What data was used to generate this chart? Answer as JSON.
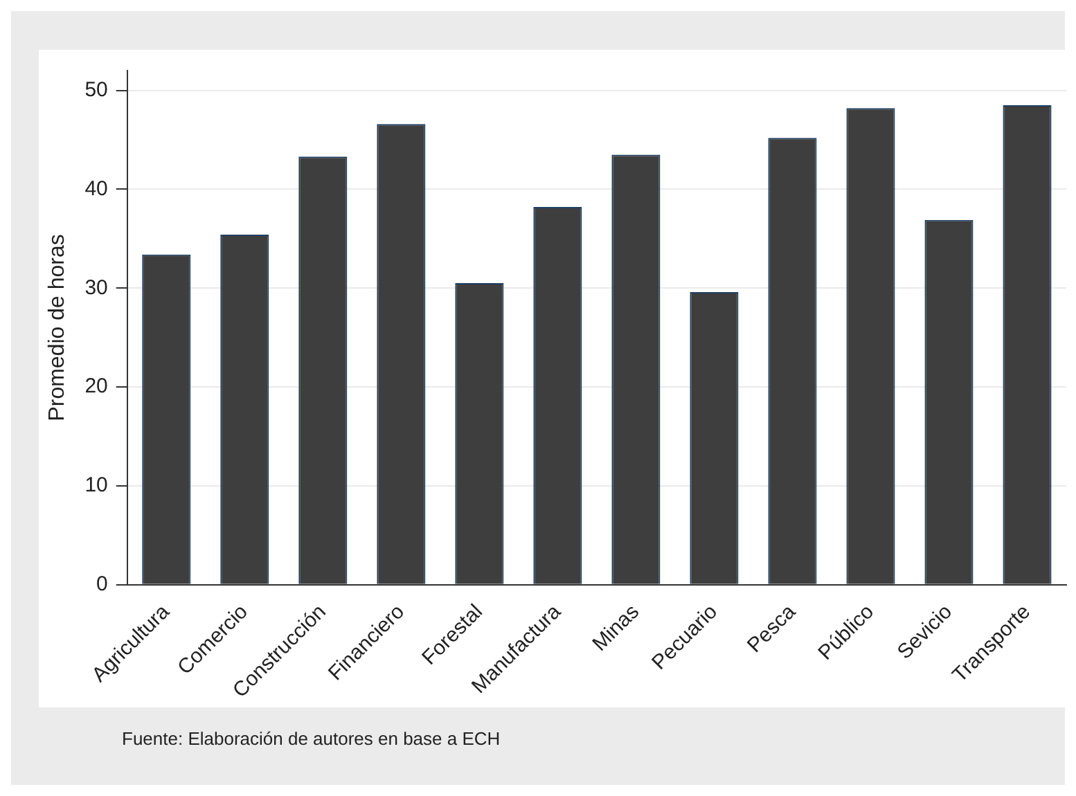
{
  "chart_data": {
    "type": "bar",
    "ylabel": "Promedio de horas",
    "categories": [
      "Agricultura",
      "Comercio",
      "Construcción",
      "Financiero",
      "Forestal",
      "Manufactura",
      "Minas",
      "Pecuario",
      "Pesca",
      "Público",
      "Sevicio",
      "Transporte"
    ],
    "values": [
      33.4,
      35.4,
      43.3,
      46.6,
      30.5,
      38.2,
      43.5,
      29.6,
      45.2,
      48.2,
      36.9,
      48.5
    ],
    "color": "#3e3e3e",
    "ylim": [
      0,
      52
    ],
    "yticks": [
      0,
      10,
      20,
      30,
      40,
      50
    ],
    "grid": "y",
    "legend": false,
    "annotations": [
      "Fuente: Elaboración de autores en base a ECH"
    ]
  }
}
